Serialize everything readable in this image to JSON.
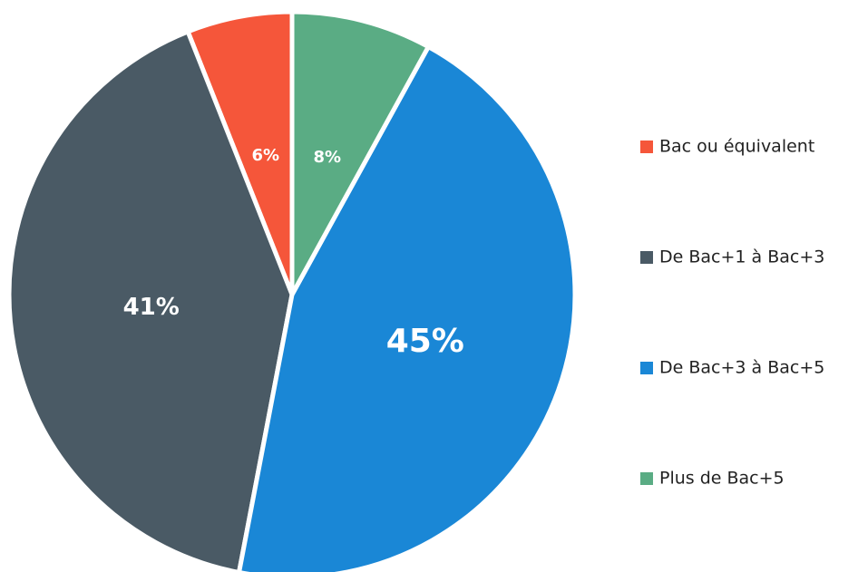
{
  "chart_data": {
    "type": "pie",
    "categories": [
      "Bac ou équivalent",
      "De Bac+1 à Bac+3",
      "De Bac+3 à Bac+5",
      "Plus de Bac+5"
    ],
    "values": [
      6,
      41,
      45,
      8
    ],
    "value_labels": [
      "6%",
      "41%",
      "45%",
      "8%"
    ],
    "colors": [
      "#f5563a",
      "#4a5a65",
      "#1a87d6",
      "#5aac84"
    ],
    "legend": "right"
  }
}
